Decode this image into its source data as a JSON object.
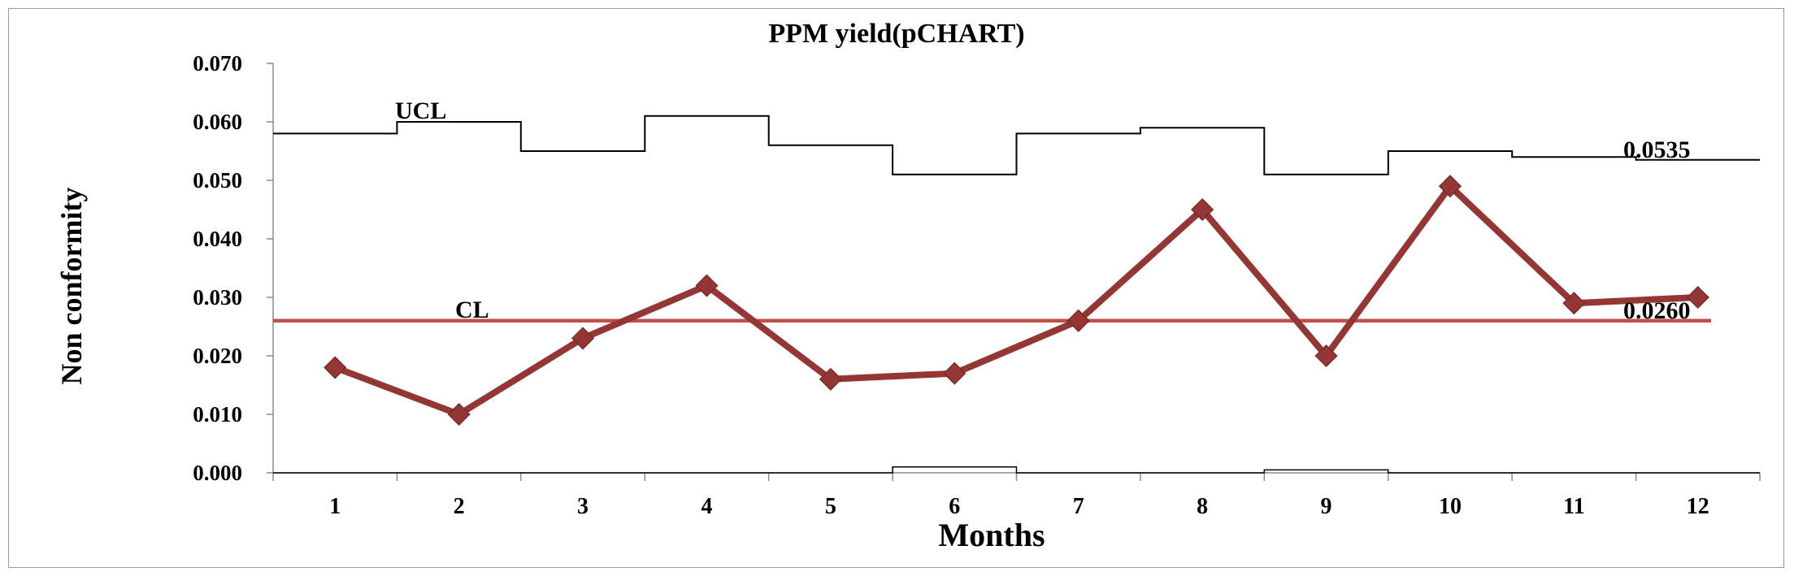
{
  "chart_data": {
    "type": "line",
    "title": "PPM yield(pCHART)",
    "xlabel": "Months",
    "ylabel": "Non conformity",
    "categories": [
      "1",
      "2",
      "3",
      "4",
      "5",
      "6",
      "7",
      "8",
      "9",
      "10",
      "11",
      "12"
    ],
    "ylim": [
      0,
      0.07
    ],
    "yticks": [
      "0.000",
      "0.010",
      "0.020",
      "0.030",
      "0.040",
      "0.050",
      "0.060",
      "0.070"
    ],
    "grid": false,
    "legend": "none",
    "series": [
      {
        "name": "",
        "values": [
          0.018,
          0.01,
          0.023,
          0.032,
          0.016,
          0.017,
          0.026,
          0.045,
          0.02,
          0.049,
          0.029,
          0.03
        ],
        "color": "#943634"
      }
    ],
    "ucl": {
      "label": "UCL",
      "values": [
        0.058,
        0.06,
        0.055,
        0.061,
        0.056,
        0.051,
        0.058,
        0.059,
        0.051,
        0.055,
        0.054,
        0.0535
      ],
      "end_label": "0.0535",
      "color": "#000000"
    },
    "cl": {
      "label": "CL",
      "value": 0.026,
      "end_label": "0.0260",
      "color": "#c0504d"
    },
    "lcl": {
      "values": [
        0,
        0,
        0,
        0,
        0,
        0.001,
        0,
        0,
        0.0005,
        0,
        0,
        0
      ],
      "color": "#000000"
    }
  }
}
